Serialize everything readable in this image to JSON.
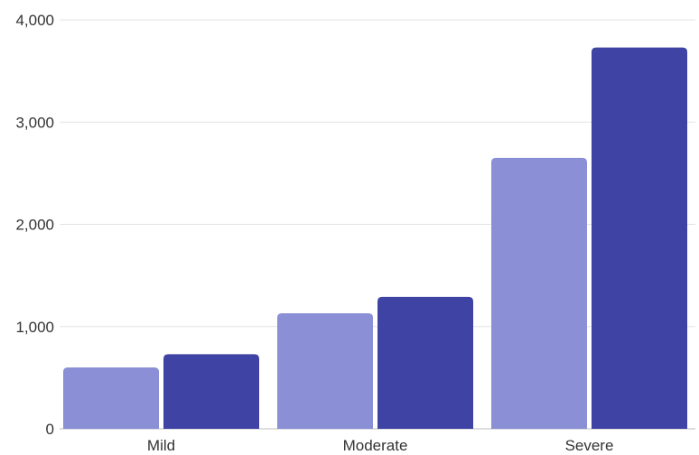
{
  "chart_data": {
    "type": "bar",
    "categories": [
      "Mild",
      "Moderate",
      "Severe"
    ],
    "series": [
      {
        "values": [
          600,
          1130,
          2650
        ],
        "color": "#8a8fd6"
      },
      {
        "values": [
          730,
          1290,
          3730
        ],
        "color": "#3f43a4"
      }
    ],
    "y_ticks": [
      "0",
      "1,000",
      "2,000",
      "3,000",
      "4,000"
    ],
    "y_tick_values": [
      0,
      1000,
      2000,
      3000,
      4000
    ],
    "ylim": [
      0,
      4000
    ],
    "grid": true,
    "legend": "none",
    "title": "",
    "xlabel": "",
    "ylabel": ""
  }
}
